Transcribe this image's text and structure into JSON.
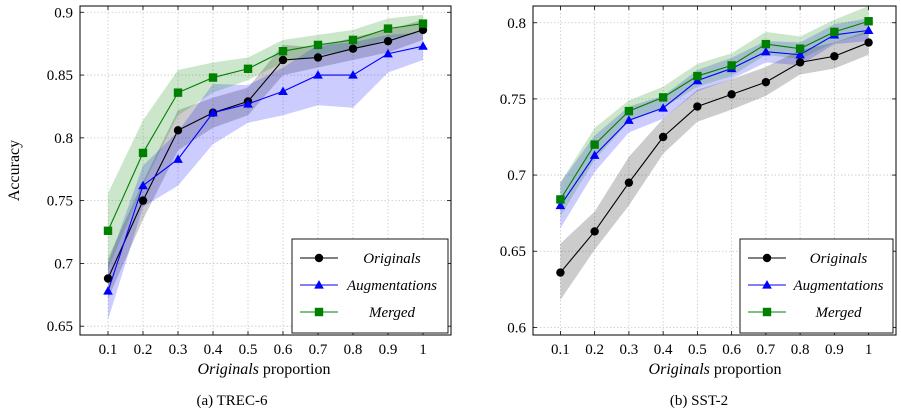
{
  "chart_data": [
    {
      "type": "line",
      "caption": "(a) TREC-6",
      "xlabel_italic": "Originals",
      "xlabel_rest": " proportion",
      "ylabel": "Accuracy",
      "xlim": [
        0.02,
        1.08
      ],
      "ylim": [
        0.643,
        0.905
      ],
      "xticks": [
        0.1,
        0.2,
        0.3,
        0.4,
        0.5,
        0.6,
        0.7,
        0.8,
        0.9,
        1
      ],
      "xtick_labels": [
        "0.1",
        "0.2",
        "0.3",
        "0.4",
        "0.5",
        "0.6",
        "0.7",
        "0.8",
        "0.9",
        "1"
      ],
      "yticks": [
        0.65,
        0.7,
        0.75,
        0.8,
        0.85,
        0.9
      ],
      "ytick_labels": [
        "0.65",
        "0.7",
        "0.75",
        "0.8",
        "0.85",
        "0.9"
      ],
      "grid": true,
      "legend_position": "bottom-right",
      "x": [
        0.1,
        0.2,
        0.3,
        0.4,
        0.5,
        0.6,
        0.7,
        0.8,
        0.9,
        1
      ],
      "series": [
        {
          "name": "Originals",
          "color": "#000000",
          "marker": "circle",
          "values": [
            0.688,
            0.75,
            0.806,
            0.82,
            0.829,
            0.862,
            0.864,
            0.871,
            0.877,
            0.886
          ],
          "band_low": [
            0.672,
            0.735,
            0.79,
            0.808,
            0.818,
            0.85,
            0.856,
            0.862,
            0.868,
            0.878
          ],
          "band_high": [
            0.704,
            0.765,
            0.822,
            0.832,
            0.84,
            0.874,
            0.872,
            0.88,
            0.886,
            0.894
          ]
        },
        {
          "name": "Augmentations",
          "color": "#0000ff",
          "marker": "triangle",
          "values": [
            0.678,
            0.762,
            0.783,
            0.82,
            0.827,
            0.837,
            0.85,
            0.85,
            0.867,
            0.873
          ],
          "band_low": [
            0.655,
            0.745,
            0.762,
            0.795,
            0.812,
            0.818,
            0.826,
            0.824,
            0.852,
            0.862
          ],
          "band_high": [
            0.7,
            0.778,
            0.805,
            0.843,
            0.842,
            0.856,
            0.874,
            0.876,
            0.882,
            0.884
          ]
        },
        {
          "name": "Merged",
          "color": "#008000",
          "marker": "square",
          "values": [
            0.726,
            0.788,
            0.836,
            0.848,
            0.855,
            0.869,
            0.874,
            0.878,
            0.887,
            0.891
          ],
          "band_low": [
            0.695,
            0.762,
            0.818,
            0.836,
            0.846,
            0.86,
            0.866,
            0.87,
            0.879,
            0.884
          ],
          "band_high": [
            0.756,
            0.814,
            0.854,
            0.86,
            0.864,
            0.878,
            0.882,
            0.886,
            0.895,
            0.898
          ]
        }
      ]
    },
    {
      "type": "line",
      "caption": "(b) SST-2",
      "xlabel_italic": "Originals",
      "xlabel_rest": " proportion",
      "ylabel": "",
      "xlim": [
        0.02,
        1.08
      ],
      "ylim": [
        0.595,
        0.811
      ],
      "xticks": [
        0.1,
        0.2,
        0.3,
        0.4,
        0.5,
        0.6,
        0.7,
        0.8,
        0.9,
        1
      ],
      "xtick_labels": [
        "0.1",
        "0.2",
        "0.3",
        "0.4",
        "0.5",
        "0.6",
        "0.7",
        "0.8",
        "0.9",
        "1"
      ],
      "yticks": [
        0.6,
        0.65,
        0.7,
        0.75,
        0.8
      ],
      "ytick_labels": [
        "0.6",
        "0.65",
        "0.7",
        "0.75",
        "0.8"
      ],
      "grid": true,
      "legend_position": "bottom-right",
      "x": [
        0.1,
        0.2,
        0.3,
        0.4,
        0.5,
        0.6,
        0.7,
        0.8,
        0.9,
        1
      ],
      "series": [
        {
          "name": "Originals",
          "color": "#000000",
          "marker": "circle",
          "values": [
            0.636,
            0.663,
            0.695,
            0.725,
            0.745,
            0.753,
            0.761,
            0.774,
            0.778,
            0.787
          ],
          "band_low": [
            0.618,
            0.651,
            0.68,
            0.714,
            0.735,
            0.743,
            0.752,
            0.766,
            0.77,
            0.779
          ],
          "band_high": [
            0.655,
            0.676,
            0.712,
            0.737,
            0.756,
            0.763,
            0.771,
            0.782,
            0.787,
            0.795
          ]
        },
        {
          "name": "Augmentations",
          "color": "#0000ff",
          "marker": "triangle",
          "values": [
            0.68,
            0.713,
            0.736,
            0.744,
            0.762,
            0.77,
            0.781,
            0.779,
            0.792,
            0.795
          ],
          "band_low": [
            0.665,
            0.702,
            0.728,
            0.737,
            0.755,
            0.763,
            0.774,
            0.772,
            0.786,
            0.788
          ],
          "band_high": [
            0.695,
            0.726,
            0.745,
            0.752,
            0.769,
            0.777,
            0.788,
            0.787,
            0.799,
            0.803
          ]
        },
        {
          "name": "Merged",
          "color": "#008000",
          "marker": "square",
          "values": [
            0.684,
            0.72,
            0.742,
            0.751,
            0.765,
            0.772,
            0.786,
            0.783,
            0.794,
            0.801
          ],
          "band_low": [
            0.673,
            0.71,
            0.735,
            0.744,
            0.758,
            0.765,
            0.779,
            0.776,
            0.787,
            0.793
          ],
          "band_high": [
            0.695,
            0.731,
            0.749,
            0.758,
            0.773,
            0.78,
            0.794,
            0.791,
            0.802,
            0.811
          ]
        }
      ]
    }
  ]
}
